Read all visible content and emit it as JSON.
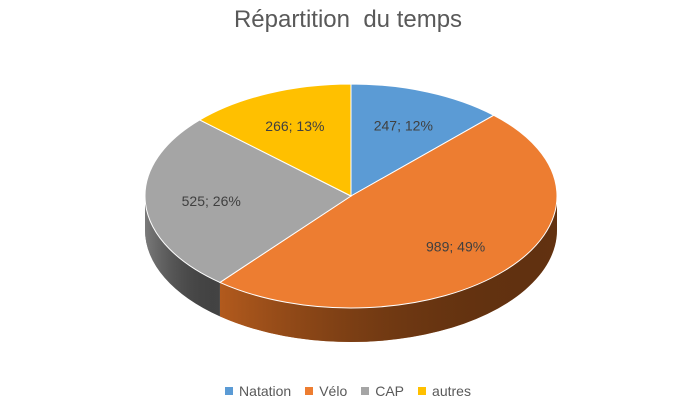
{
  "chart_data": {
    "type": "pie",
    "title": "Répartition  du temps",
    "categories": [
      "Natation",
      "Vélo",
      "CAP",
      "autres"
    ],
    "values": [
      247,
      989,
      525,
      266
    ],
    "percent_labels": [
      "12%",
      "49%",
      "26%",
      "13%"
    ],
    "data_labels": [
      "247; 12%",
      "989; 49%",
      "525; 26%",
      "266; 13%"
    ],
    "colors": [
      "#5B9BD5",
      "#ED7D31",
      "#A5A5A5",
      "#FFC000"
    ],
    "side_colors": [
      "#3E75A8",
      "#B25A1D",
      "#7A7A7A",
      "#C99700"
    ],
    "legend_position": "bottom",
    "style": "3d"
  }
}
